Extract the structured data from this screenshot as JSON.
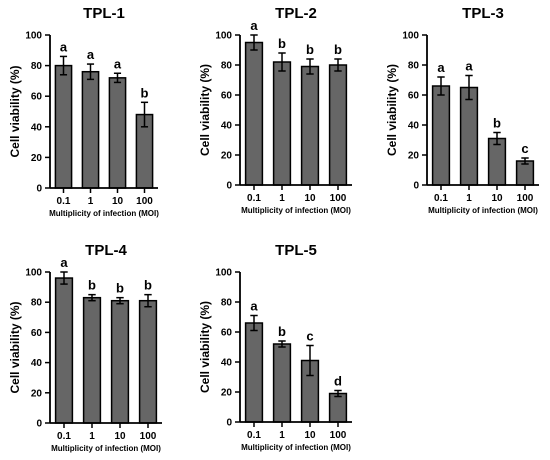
{
  "chart_data": [
    {
      "type": "bar",
      "title": "TPL-1",
      "xlabel": "Multiplicity of infection (MOI)",
      "ylabel": "Cell viability (%)",
      "ylim": [
        0,
        100
      ],
      "yticks": [
        0,
        20,
        40,
        60,
        80,
        100
      ],
      "categories": [
        "0.1",
        "1",
        "10",
        "100"
      ],
      "values": [
        80,
        76,
        72,
        48
      ],
      "errors": [
        6,
        5,
        3,
        8
      ],
      "letters": [
        "a",
        "a",
        "a",
        "b"
      ],
      "bar_color": "#666666"
    },
    {
      "type": "bar",
      "title": "TPL-2",
      "xlabel": "Multiplicity of infection (MOI)",
      "ylabel": "Cell viability (%)",
      "ylim": [
        0,
        100
      ],
      "yticks": [
        0,
        20,
        40,
        60,
        80,
        100
      ],
      "categories": [
        "0.1",
        "1",
        "10",
        "100"
      ],
      "values": [
        95,
        82,
        79,
        80
      ],
      "errors": [
        5,
        6,
        5,
        4
      ],
      "letters": [
        "a",
        "b",
        "b",
        "b"
      ],
      "bar_color": "#666666"
    },
    {
      "type": "bar",
      "title": "TPL-3",
      "xlabel": "Multiplicity of infection (MOI)",
      "ylabel": "Cell viability (%)",
      "ylim": [
        0,
        100
      ],
      "yticks": [
        0,
        20,
        40,
        60,
        80,
        100
      ],
      "categories": [
        "0.1",
        "1",
        "10",
        "100"
      ],
      "values": [
        66,
        65,
        31,
        16
      ],
      "errors": [
        6,
        8,
        4,
        2
      ],
      "letters": [
        "a",
        "a",
        "b",
        "c"
      ],
      "bar_color": "#666666"
    },
    {
      "type": "bar",
      "title": "TPL-4",
      "xlabel": "Multiplicity of infection (MOI)",
      "ylabel": "Cell viability (%)",
      "ylim": [
        0,
        100
      ],
      "yticks": [
        0,
        20,
        40,
        60,
        80,
        100
      ],
      "categories": [
        "0.1",
        "1",
        "10",
        "100"
      ],
      "values": [
        96,
        83,
        81,
        81
      ],
      "errors": [
        4,
        2,
        2,
        4
      ],
      "letters": [
        "a",
        "b",
        "b",
        "b"
      ],
      "bar_color": "#666666"
    },
    {
      "type": "bar",
      "title": "TPL-5",
      "xlabel": "Multiplicity of infection (MOI)",
      "ylabel": "Cell viability (%)",
      "ylim": [
        0,
        100
      ],
      "yticks": [
        0,
        20,
        40,
        60,
        80,
        100
      ],
      "categories": [
        "0.1",
        "1",
        "10",
        "100"
      ],
      "values": [
        66,
        52,
        41,
        19
      ],
      "errors": [
        5,
        2,
        10,
        2
      ],
      "letters": [
        "a",
        "b",
        "c",
        "d"
      ],
      "bar_color": "#666666"
    }
  ]
}
